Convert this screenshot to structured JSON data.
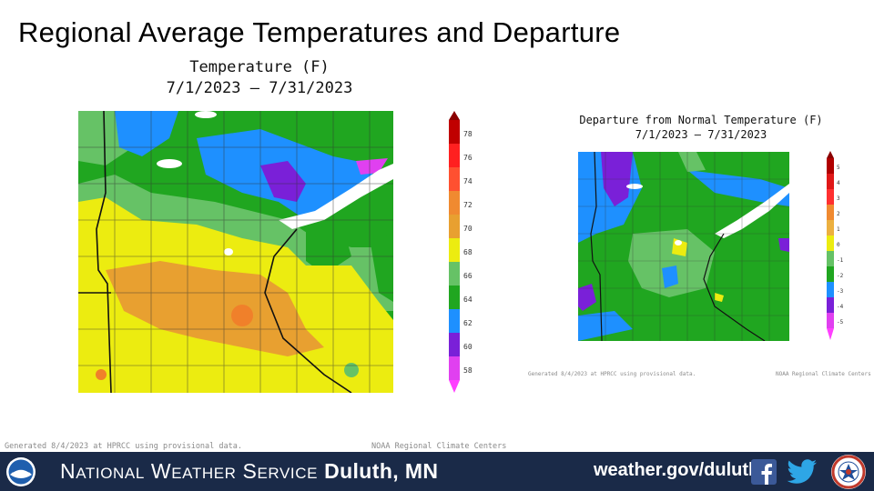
{
  "slide": {
    "title": "Regional Average Temperatures and Departure"
  },
  "temperature_map": {
    "title_line1": "Temperature (F)",
    "title_line2": "7/1/2023 – 7/31/2023",
    "colorbar_ticks": [
      "78",
      "76",
      "74",
      "72",
      "70",
      "68",
      "66",
      "64",
      "62",
      "60",
      "58"
    ],
    "colorbar_colors": [
      "#c00000",
      "#ff2020",
      "#ff5030",
      "#f08a30",
      "#e8a030",
      "#ecec10",
      "#66c266",
      "#20a620",
      "#1e90ff",
      "#7a20d8",
      "#e040f0"
    ],
    "credit_left": "Generated 8/4/2023 at HPRCC using provisional data.",
    "credit_right": "NOAA Regional Climate Centers"
  },
  "departure_map": {
    "title_line1": "Departure from Normal Temperature (F)",
    "title_line2": "7/1/2023 – 7/31/2023",
    "colorbar_ticks": [
      "5",
      "4",
      "3",
      "2",
      "1",
      "0",
      "-1",
      "-2",
      "-3",
      "-4",
      "-5"
    ],
    "colorbar_colors": [
      "#b00000",
      "#e01818",
      "#ff3030",
      "#f08a30",
      "#ecb040",
      "#ecec10",
      "#66c266",
      "#20a620",
      "#1e90ff",
      "#7a20d8",
      "#e040f0"
    ],
    "credit_left": "Generated 8/4/2023 at HPRCC using provisional data.",
    "credit_right": "NOAA Regional Climate Centers"
  },
  "footer": {
    "org_prefix": "N",
    "org_rest1": "ATIONAL",
    "org_w": "W",
    "org_rest2": "EATHER",
    "org_s": "S",
    "org_rest3": "ERVICE",
    "office": "Duluth, MN",
    "url": "weather.gov/duluth",
    "noaa_logo_icon": "noaa-logo-icon",
    "facebook_icon": "facebook-icon",
    "twitter_icon": "twitter-icon",
    "nws_logo_icon": "nws-logo-icon"
  }
}
